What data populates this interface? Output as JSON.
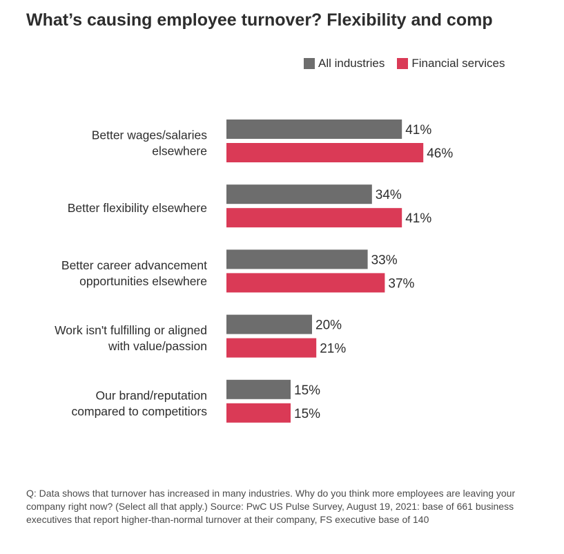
{
  "title": "What’s causing employee turnover? Flexibility and comp",
  "legend": [
    {
      "label": "All industries",
      "color": "#6d6d6d"
    },
    {
      "label": "Financial services",
      "color": "#da3a56"
    }
  ],
  "chart_data": {
    "type": "bar",
    "orientation": "horizontal",
    "title": "What’s causing employee turnover? Flexibility and comp",
    "categories": [
      [
        "Better wages/salaries",
        "elsewhere"
      ],
      [
        "Better flexibility elsewhere"
      ],
      [
        "Better career advancement",
        "opportunities elsewhere"
      ],
      [
        "Work isn't fulfilling or aligned",
        "with value/passion"
      ],
      [
        "Our brand/reputation",
        "compared to competitiors"
      ]
    ],
    "series": [
      {
        "name": "All industries",
        "color": "#6d6d6d",
        "values": [
          41,
          34,
          33,
          20,
          15
        ],
        "labels": [
          "41%",
          "34%",
          "33%",
          "20%",
          "15%"
        ]
      },
      {
        "name": "Financial services",
        "color": "#da3a56",
        "values": [
          46,
          41,
          37,
          21,
          15
        ],
        "labels": [
          "46%",
          "41%",
          "37%",
          "21%",
          "15%"
        ]
      }
    ],
    "xlim": [
      0,
      100
    ],
    "legend_position": "top-right"
  },
  "footnote": "Q: Data shows that turnover has increased in many industries. Why do you think more employees are leaving your company right now? (Select all that apply.) Source: PwC US Pulse Survey, August 19, 2021: base of 661 business executives that report higher-than-normal turnover at their company, FS executive base of 140"
}
